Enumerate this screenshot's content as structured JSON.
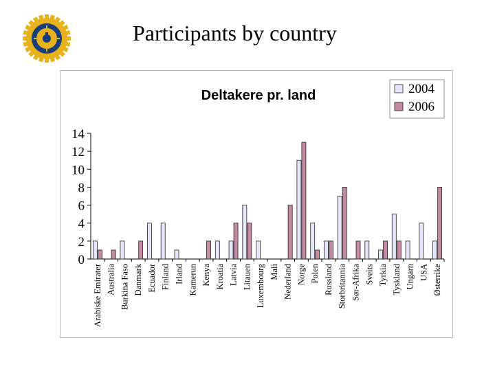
{
  "slide": {
    "title": "Participants by country",
    "logo_text": "ROTARY INTERNATIONAL"
  },
  "colors": {
    "series_2004": "#e6e6fa",
    "series_2006": "#c48aa4",
    "bar_stroke": "#222222",
    "logo_gold": "#e8b21c",
    "logo_blue": "#173e7a"
  },
  "chart_data": {
    "type": "bar",
    "title": "Deltakere pr. land",
    "xlabel": "",
    "ylabel": "",
    "ylim": [
      0,
      14
    ],
    "yticks": [
      0,
      2,
      4,
      6,
      8,
      10,
      12,
      14
    ],
    "grid": false,
    "legend_position": "top-right",
    "categories": [
      "Arabiske Emirater",
      "Australia",
      "Burkina Faso",
      "Danmark",
      "Ecuador",
      "Finland",
      "Irland",
      "Kamerun",
      "Kenya",
      "Kroatia",
      "Latvia",
      "Litauen",
      "Luxembourg",
      "Mali",
      "Nederland",
      "Norge",
      "Polen",
      "Russland",
      "Storbritannia",
      "Sør-Afrika",
      "Sveits",
      "Tyrkia",
      "Tyskland",
      "Ungarn",
      "USA",
      "Østerrike"
    ],
    "series": [
      {
        "name": "2004",
        "values": [
          2,
          0,
          2,
          0,
          4,
          4,
          1,
          0,
          0,
          2,
          2,
          6,
          2,
          0,
          0,
          11,
          4,
          2,
          7,
          0,
          2,
          1,
          5,
          2,
          4,
          2
        ]
      },
      {
        "name": "2006",
        "values": [
          1,
          1,
          0,
          2,
          0,
          0,
          0,
          0,
          2,
          0,
          4,
          4,
          0,
          0,
          6,
          13,
          1,
          2,
          8,
          2,
          0,
          2,
          2,
          0,
          0,
          8
        ]
      }
    ]
  }
}
